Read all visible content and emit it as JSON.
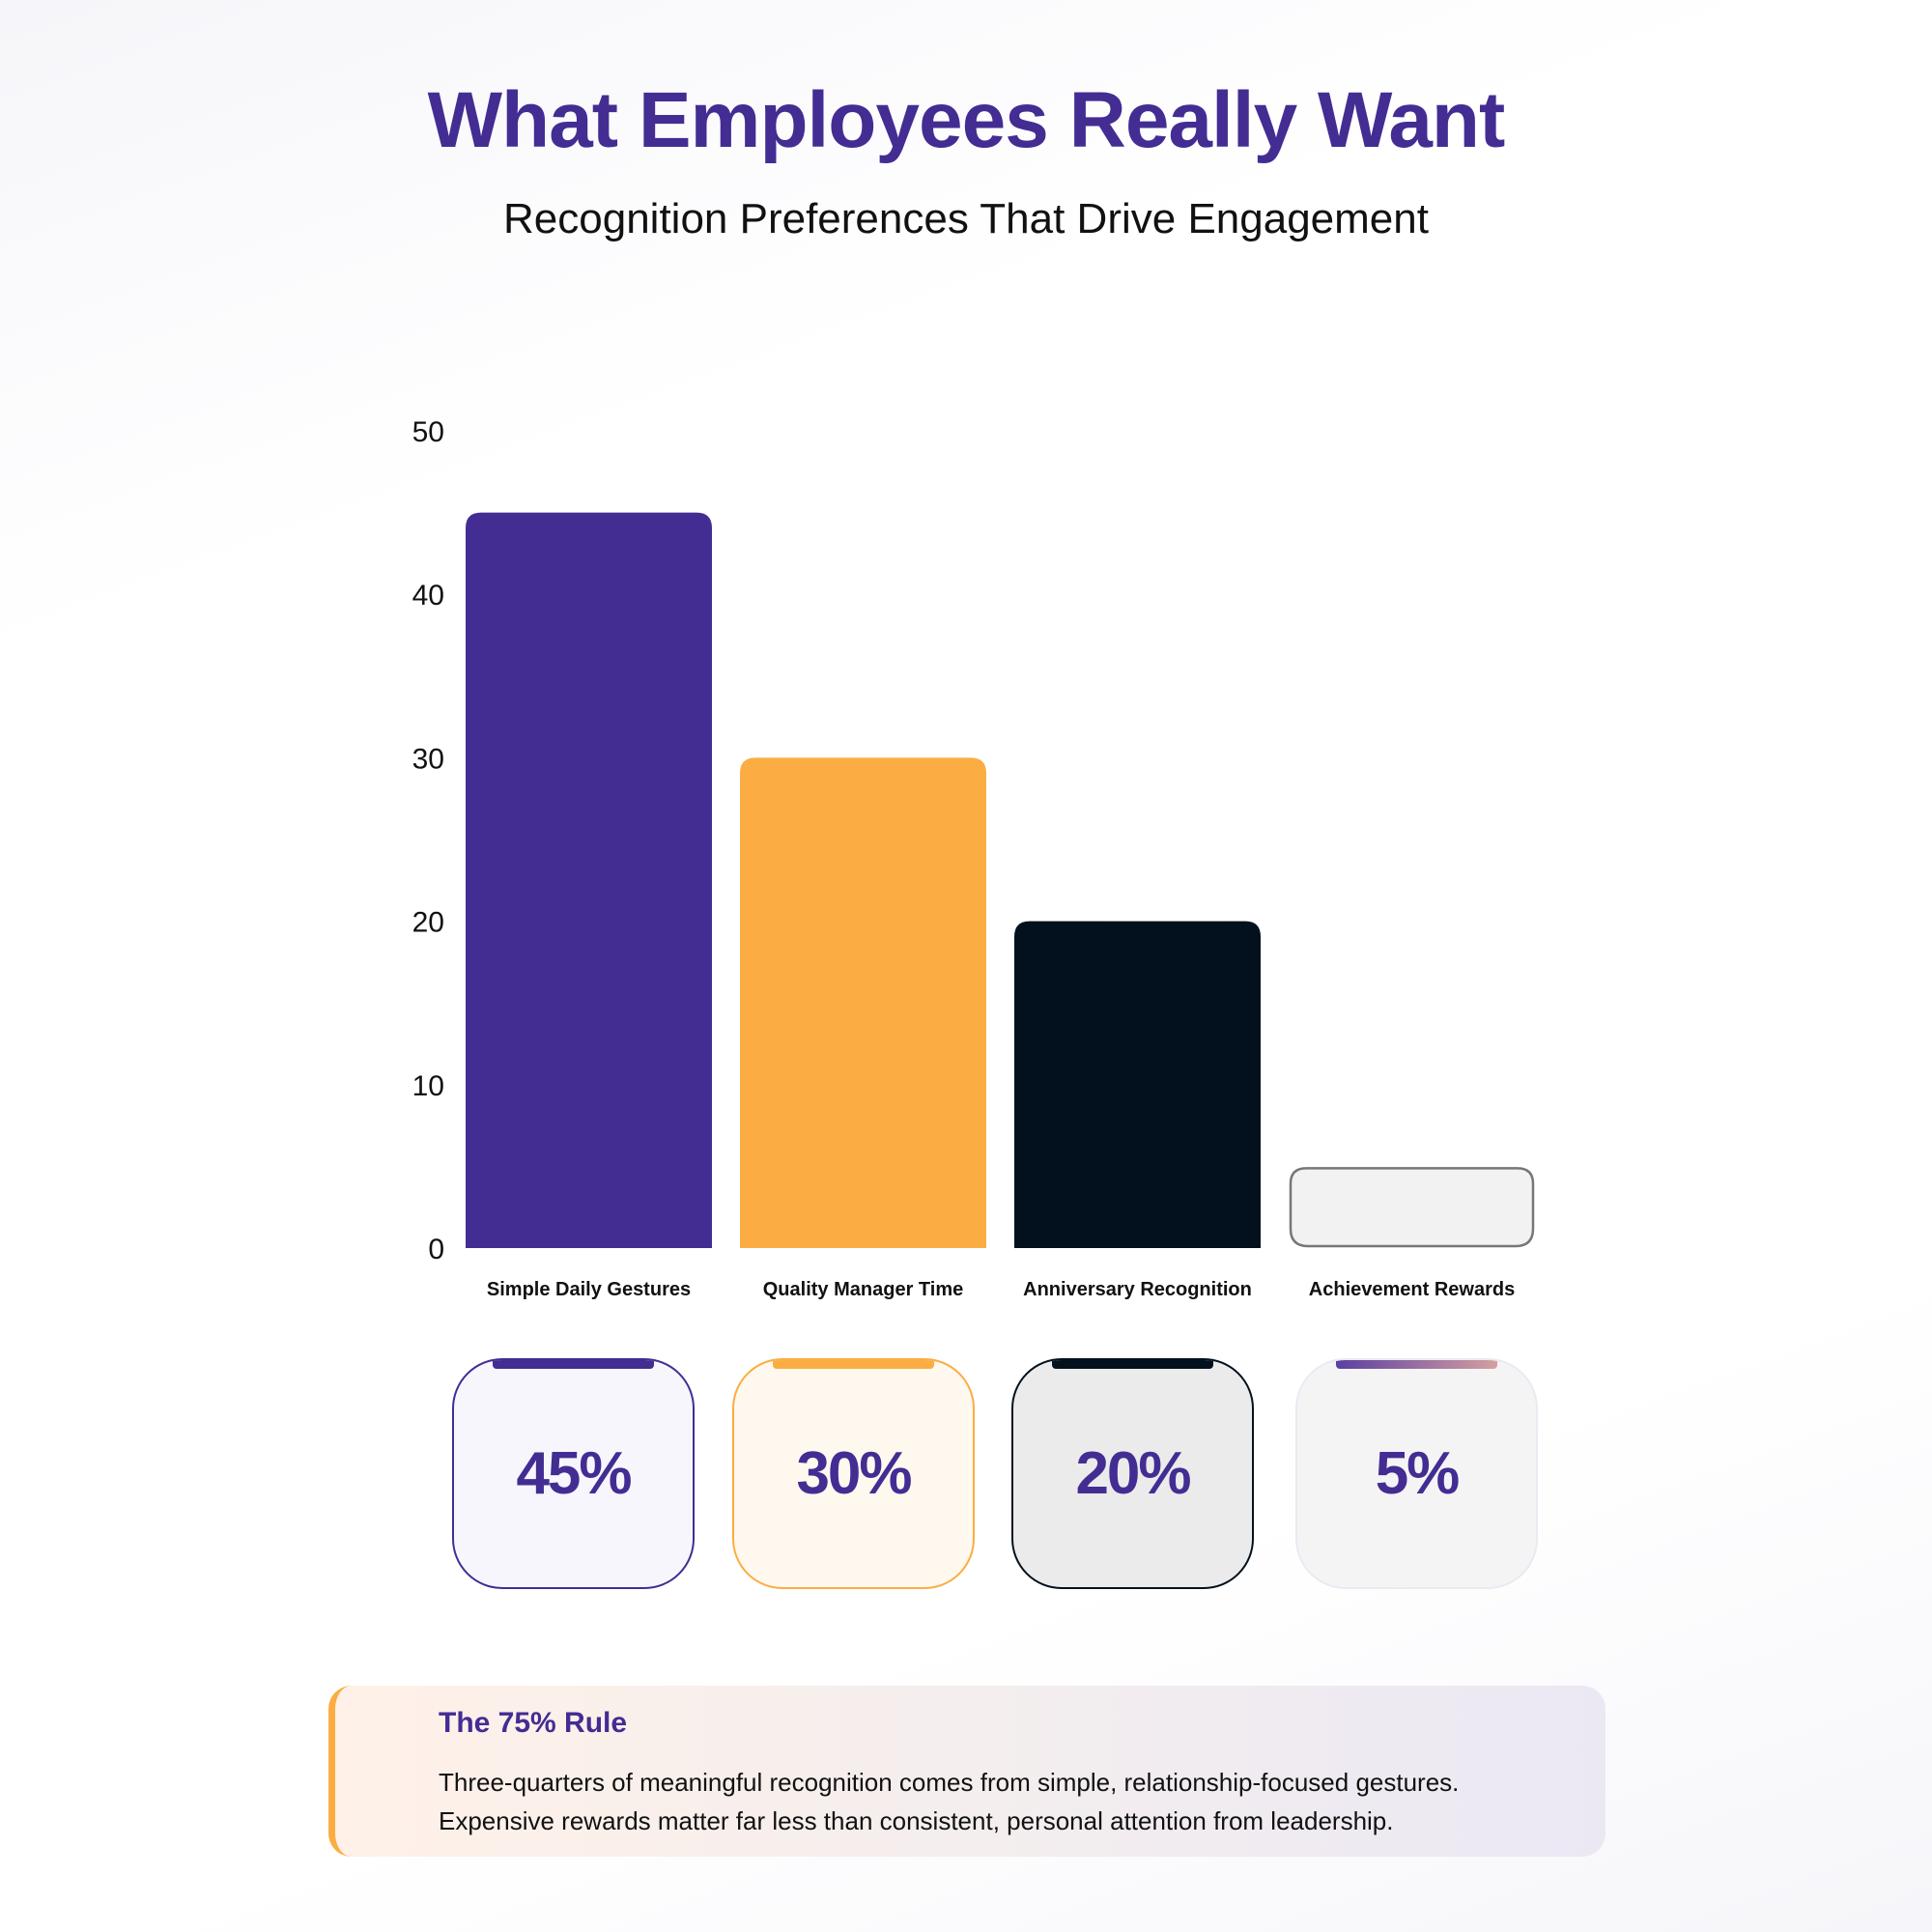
{
  "header": {
    "title": "What Employees Really Want",
    "subtitle": "Recognition Preferences That Drive Engagement"
  },
  "chart_data": {
    "type": "bar",
    "title": "What Employees Really Want",
    "categories": [
      "Simple Daily Gestures",
      "Quality Manager Time",
      "Anniversary Recognition",
      "Achievement Rewards"
    ],
    "values": [
      45,
      30,
      20,
      5
    ],
    "colors": [
      "#432d93",
      "#fbad43",
      "#03111e",
      "#f2f2f2"
    ],
    "yticks": [
      0,
      10,
      20,
      30,
      40,
      50
    ],
    "ylim": [
      0,
      50
    ],
    "xlabel": "",
    "ylabel": "",
    "grid": false
  },
  "cards": [
    {
      "label": "45%",
      "bg": "#f7f6fc",
      "border": "#432d93",
      "accent": "#432d93"
    },
    {
      "label": "30%",
      "bg": "#fff8ef",
      "border": "#fbad43",
      "accent": "#fbad43"
    },
    {
      "label": "20%",
      "bg": "#ebebeb",
      "border": "#03111e",
      "accent": "#03111e"
    },
    {
      "label": "5%",
      "bg": "#f4f4f5",
      "border": "#ebe9f2",
      "accent": "linear-gradient(90deg,#5b3fa0,#d4a0a0)"
    }
  ],
  "callout": {
    "title": "The 75% Rule",
    "line1": "Three-quarters of meaningful recognition comes from simple, relationship-focused gestures.",
    "line2": "Expensive rewards matter far less than consistent, personal attention from leadership."
  }
}
